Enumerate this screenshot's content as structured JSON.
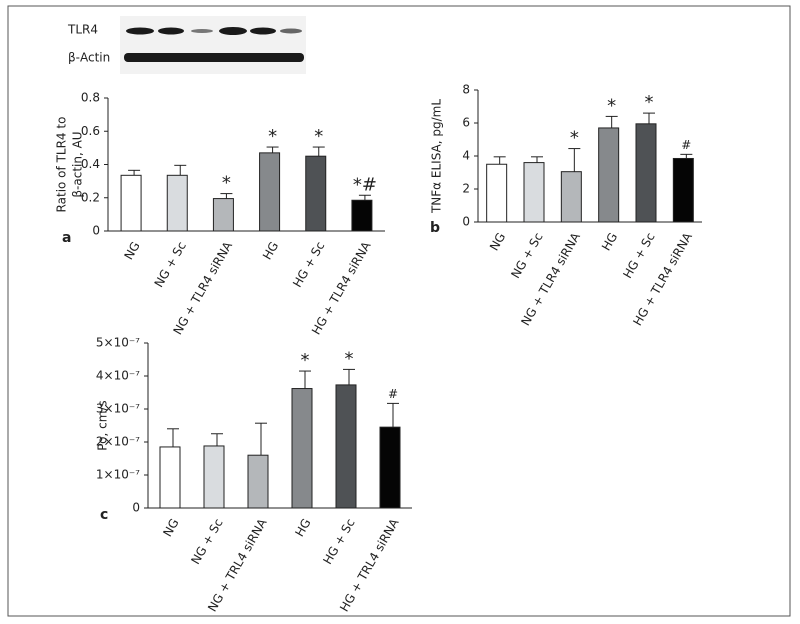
{
  "blot": {
    "labels": [
      "TLR4",
      "β-Actin"
    ]
  },
  "chart_data": [
    {
      "type": "bar",
      "panel": "a",
      "y_label": [
        "Ratio of TLR4 to",
        "β-actin, AU"
      ],
      "categories": [
        "NG",
        "NG + Sc",
        "NG + TLR4 siRNA",
        "HG",
        "HG + Sc",
        "HG + TLR4 siRNA"
      ],
      "values": [
        0.335,
        0.335,
        0.195,
        0.47,
        0.45,
        0.185
      ],
      "errors": [
        0.03,
        0.06,
        0.03,
        0.035,
        0.055,
        0.03
      ],
      "annotations": [
        null,
        null,
        "*",
        "*",
        "*",
        "*#"
      ],
      "colors": [
        "#ffffff",
        "#d9dcdf",
        "#b4b7ba",
        "#86898c",
        "#4f5255",
        "#050505"
      ],
      "ylim": [
        0,
        0.8
      ],
      "yticks": [
        0,
        0.2,
        0.4,
        0.6,
        0.8
      ]
    },
    {
      "type": "bar",
      "panel": "b",
      "y_label": [
        "TNFα ELISA, pg/mL"
      ],
      "categories": [
        "NG",
        "NG + Sc",
        "NG + TLR4 siRNA",
        "HG",
        "HG + Sc",
        "HG + TLR4 siRNA"
      ],
      "values": [
        3.5,
        3.6,
        3.05,
        5.7,
        5.95,
        3.85
      ],
      "errors": [
        0.45,
        0.35,
        1.4,
        0.7,
        0.65,
        0.25
      ],
      "annotations": [
        null,
        null,
        "*",
        "*",
        "*",
        "#"
      ],
      "colors": [
        "#ffffff",
        "#d9dcdf",
        "#b4b7ba",
        "#86898c",
        "#4f5255",
        "#050505"
      ],
      "ylim": [
        0,
        8
      ],
      "yticks": [
        0,
        2,
        4,
        6,
        8
      ]
    },
    {
      "type": "bar",
      "panel": "c",
      "y_label": [
        "Po, cm/s"
      ],
      "categories": [
        "NG",
        "NG + Sc",
        "NG + TRL4 siRNA",
        "HG",
        "HG + Sc",
        "HG + TRL4 siRNA"
      ],
      "values": [
        1.85e-07,
        1.88e-07,
        1.6e-07,
        3.62e-07,
        3.73e-07,
        2.45e-07
      ],
      "errors": [
        5.5e-08,
        3.7e-08,
        9.7e-08,
        5.3e-08,
        4.7e-08,
        7.2e-08
      ],
      "annotations": [
        null,
        null,
        null,
        "*",
        "*",
        "#"
      ],
      "colors": [
        "#ffffff",
        "#d9dcdf",
        "#b4b7ba",
        "#86898c",
        "#4f5255",
        "#050505"
      ],
      "ylim": [
        0,
        5e-07
      ],
      "yticks": [
        0,
        {
          "value": 1e-07,
          "label": "1×10⁻⁷"
        },
        {
          "value": 2e-07,
          "label": "2×10⁻⁷"
        },
        {
          "value": 3e-07,
          "label": "3×10⁻⁷"
        },
        {
          "value": 4e-07,
          "label": "4×10⁻⁷"
        },
        {
          "value": 5e-07,
          "label": "5×10⁻⁷"
        }
      ]
    }
  ]
}
